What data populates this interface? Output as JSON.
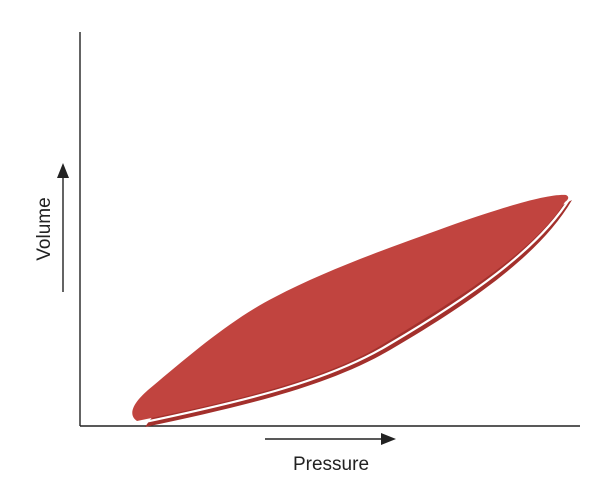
{
  "diagram": {
    "x_axis_label": "Pressure",
    "y_axis_label": "Volume",
    "loop_fill_color": "#c1443f",
    "loop_shadow_color": "#a3302c",
    "axis_color": "#222222"
  }
}
